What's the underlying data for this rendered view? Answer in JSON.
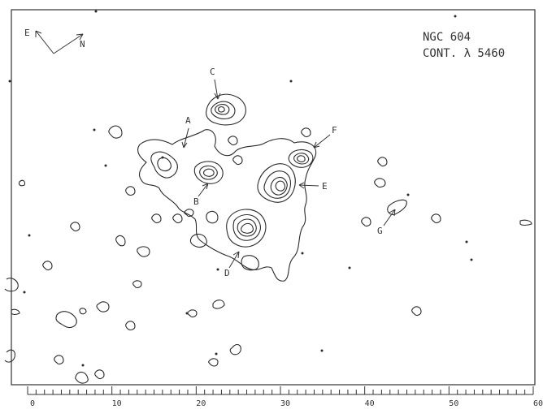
{
  "figure": {
    "title_line1": "NGC 604",
    "title_line2": "CONT. λ 5460",
    "compass": {
      "east": "E",
      "north": "N"
    },
    "features": [
      {
        "id": "A",
        "label": "A"
      },
      {
        "id": "B",
        "label": "B"
      },
      {
        "id": "C",
        "label": "C"
      },
      {
        "id": "D",
        "label": "D"
      },
      {
        "id": "E",
        "label": "E"
      },
      {
        "id": "F",
        "label": "F"
      },
      {
        "id": "G",
        "label": "G"
      }
    ],
    "scale": {
      "min": 0,
      "max": 60,
      "minor_step": 1,
      "major_step": 10,
      "labels": [
        "0",
        "10",
        "20",
        "30",
        "40",
        "50",
        "60"
      ]
    }
  }
}
